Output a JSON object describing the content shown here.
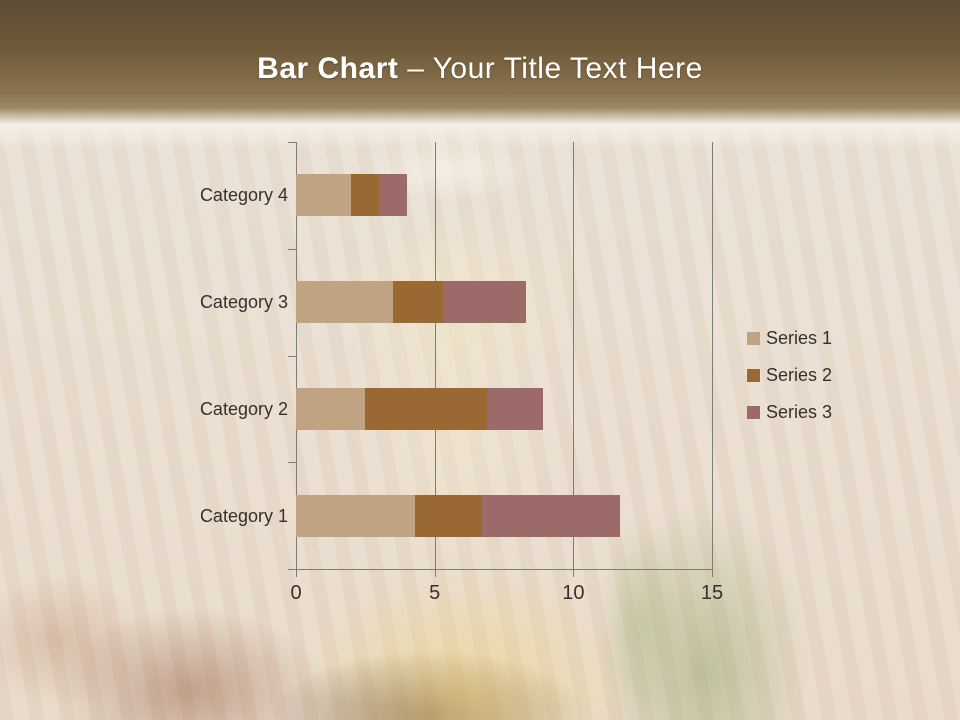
{
  "slide": {
    "title": {
      "bold": "Bar Chart",
      "regular": " – Your Title Text Here"
    },
    "header_colors": {
      "top": "#5f4c35",
      "bottom": "#a08a64"
    },
    "background_color": "#e9ddcf"
  },
  "chart_data": {
    "type": "bar",
    "orientation": "horizontal",
    "stacked": true,
    "title": "",
    "xlabel": "",
    "ylabel": "",
    "categories": [
      "Category 1",
      "Category 2",
      "Category 3",
      "Category 4"
    ],
    "series": [
      {
        "name": "Series 1",
        "color": "#BFA382",
        "values": [
          4.3,
          2.5,
          3.5,
          2
        ]
      },
      {
        "name": "Series 2",
        "color": "#9A6832",
        "values": [
          2.4,
          4.4,
          1.8,
          1
        ]
      },
      {
        "name": "Series 3",
        "color": "#9D6A6A",
        "values": [
          5,
          2,
          3,
          1
        ]
      }
    ],
    "xlim": [
      0,
      15
    ],
    "x_ticks": [
      0,
      5,
      10,
      15
    ],
    "grid": "vertical-gridlines",
    "legend_position": "right",
    "axis_color": "#807b73",
    "label_color": "#35312c"
  }
}
